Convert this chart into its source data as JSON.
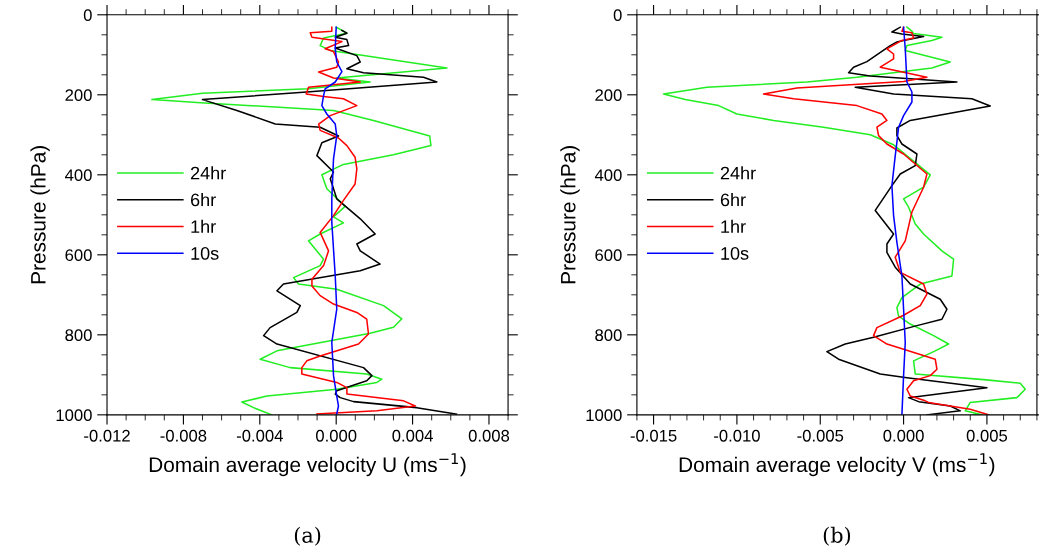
{
  "chart_data": [
    {
      "type": "line",
      "xlabel": "Domain average velocity U (ms$^{−1}$)",
      "ylabel": "Pressure (hPa)",
      "annotations": [
        "(a)"
      ],
      "xlim": [
        -0.012,
        0.009
      ],
      "xticks": [
        {
          "value": -0.012,
          "label": "-0.012"
        },
        {
          "value": -0.008,
          "label": "-0.008"
        },
        {
          "value": -0.004,
          "label": "-0.004"
        },
        {
          "value": 0,
          "label": "0.000"
        },
        {
          "value": 0.004,
          "label": "0.004"
        },
        {
          "value": 0.008,
          "label": "0.008"
        }
      ],
      "ylim": [
        1000,
        0
      ],
      "yticks": [
        0,
        200,
        400,
        600,
        800,
        1000
      ],
      "grid": false,
      "legend": "left",
      "marker": "none",
      "line_style": "solid",
      "series": [
        {
          "name": "24hr",
          "color": "#22ee22",
          "x": [
            0,
            0.00056,
            -0.00066,
            -0.00084,
            -0.00031,
            0.0058,
            3e-05,
            0.00178,
            -0.00145,
            -0.007,
            -0.00965,
            -0.0071,
            -0.00014,
            0.00195,
            0.0049,
            0.00496,
            0.003,
            0.00038,
            -0.00075,
            -0.00049,
            0.00047,
            -0.00014,
            0.00038,
            -0.00084,
            -0.00145,
            -0.00066,
            -0.00084,
            -0.00223,
            -0.00197,
            3e-05,
            0.00248,
            0.00344,
            0.003,
            0.00178,
            -0.0031,
            -0.00398,
            -0.00241,
            0.0016,
            0.00239,
            0.00213,
            3e-05,
            -0.00363,
            -0.00494,
            -0.00433,
            -0.00337
          ],
          "values": [
            31,
            46,
            58,
            77,
            89,
            133,
            158,
            168,
            185,
            196,
            212,
            220,
            239,
            264,
            303,
            327,
            350,
            374,
            400,
            435,
            479,
            505,
            520,
            548,
            565,
            611,
            627,
            657,
            673,
            686,
            727,
            760,
            781,
            796,
            840,
            861,
            882,
            898,
            911,
            919,
            936,
            953,
            968,
            982,
            1000
          ]
        },
        {
          "name": "6hr",
          "color": "#000000",
          "x": [
            0.0003,
            0.00056,
            -5e-05,
            0.00056,
            0.00065,
            -5e-05,
            0.00108,
            0.00126,
            0.00056,
            0.00143,
            0.00457,
            0.00527,
            -0.00154,
            -0.007,
            -0.0052,
            -0.00319,
            -0.00084,
            0.00012,
            -0.00075,
            -0.00101,
            -0.00014,
            -0.00031,
            3e-05,
            0.00126,
            0.00204,
            0.00108,
            0.00126,
            0.0023,
            0.00126,
            -0.00276,
            -0.0031,
            -0.00188,
            -0.00206,
            -0.00346,
            -0.0038,
            -0.0031,
            0.00143,
            0.00187,
            0.0016,
            3e-05,
            -5e-05,
            0.00021,
            0.00091,
            0.00422,
            0.0063
          ],
          "values": [
            39,
            46,
            56,
            62,
            77,
            83,
            102,
            118,
            135,
            145,
            156,
            168,
            193,
            212,
            239,
            273,
            281,
            303,
            320,
            352,
            393,
            410,
            460,
            510,
            548,
            573,
            590,
            623,
            640,
            673,
            690,
            727,
            744,
            782,
            802,
            823,
            882,
            902,
            915,
            940,
            948,
            957,
            967,
            982,
            998
          ]
        },
        {
          "name": "1hr",
          "color": "#ff0000",
          "x": [
            -0.00023,
            -0.00023,
            -0.00136,
            -0.00127,
            0.0003,
            -0.00058,
            -0.00014,
            0.00012,
            3e-05,
            -0.00092,
            -0.00014,
            0.00126,
            -0.00145,
            -0.00157,
            -0.00066,
            0.00038,
            0.00108,
            -0.00031,
            -0.00092,
            -0.00084,
            0.00012,
            0.00056,
            0.00099,
            0.00108,
            0.00099,
            0.00038,
            -0.00014,
            -0.00084,
            -0.0004,
            -0.00066,
            -0.00127,
            -0.00127,
            -0.00084,
            -0.00014,
            0.00108,
            0.0016,
            0.00169,
            0.00117,
            -0.00084,
            -0.00154,
            -0.0018,
            -0.0018,
            3e-05,
            0.00056,
            0.00056,
            0.00353,
            0.00414,
            0.00213,
            -0.00101
          ],
          "values": [
            31,
            41,
            45,
            56,
            67,
            85,
            92,
            118,
            131,
            143,
            158,
            168,
            181,
            198,
            204,
            210,
            227,
            252,
            273,
            289,
            308,
            327,
            356,
            385,
            423,
            464,
            502,
            544,
            590,
            627,
            661,
            678,
            702,
            723,
            744,
            761,
            798,
            823,
            853,
            865,
            882,
            898,
            919,
            932,
            948,
            965,
            978,
            990,
            998
          ]
        },
        {
          "name": "10s",
          "color": "#0000ff",
          "x": [
            0,
            -5e-05,
            3e-05,
            0.0003,
            -5e-05,
            -0.00058,
            -0.00066,
            -0.00075,
            -0.00049,
            -5e-05,
            3e-05,
            -0.00014,
            -0.00023,
            -0.00023,
            -5e-05,
            3e-05,
            -0.00023,
            -0.00014,
            3e-05,
            0.00012,
            3e-05
          ],
          "values": [
            31,
            85,
            118,
            142,
            168,
            185,
            202,
            227,
            248,
            273,
            302,
            360,
            460,
            519,
            653,
            736,
            819,
            902,
            953,
            978,
            998
          ]
        }
      ]
    },
    {
      "type": "line",
      "xlabel": "Domain average velocity V (ms$^{−1}$)",
      "ylabel": "Pressure (hPa)",
      "annotations": [
        "(b)"
      ],
      "xlim": [
        -0.016,
        0.008
      ],
      "xticks": [
        {
          "value": -0.015,
          "label": "-0.015"
        },
        {
          "value": -0.01,
          "label": "-0.010"
        },
        {
          "value": -0.005,
          "label": "-0.005"
        },
        {
          "value": 0,
          "label": "0.000"
        },
        {
          "value": 0.005,
          "label": "0.005"
        }
      ],
      "ylim": [
        1000,
        0
      ],
      "yticks": [
        0,
        200,
        400,
        600,
        800,
        1000
      ],
      "grid": false,
      "legend": "left",
      "marker": "none",
      "line_style": "solid",
      "series": [
        {
          "name": "24hr",
          "color": "#22ee22",
          "x": [
            0.0002,
            0.0005,
            0.0006,
            0.0023,
            0.0017,
            0.0002,
            0.0001,
            0.0028,
            0.0017,
            -0.0028,
            -0.0058,
            -0.0118,
            -0.0144,
            -0.0131,
            -0.0111,
            -0.01,
            -0.0078,
            -0.0048,
            -0.002,
            -0.0006,
            0.0016,
            0.0012,
            0,
            0.0003,
            0.0007,
            0.0012,
            0.0023,
            0.003,
            0.0029,
            0.001,
            -0.0001,
            -0.0004,
            -0.0003,
            0.0004,
            0.0018,
            0.0027,
            0.0019,
            0.0006,
            0.0007,
            0.0048,
            0.007,
            0.0073,
            0.0068,
            0.004,
            0.0037,
            0.0047,
            0.0042
          ],
          "values": [
            31,
            41,
            47,
            56,
            64,
            77,
            89,
            118,
            133,
            156,
            168,
            181,
            198,
            212,
            227,
            248,
            264,
            281,
            300,
            325,
            400,
            431,
            460,
            481,
            523,
            548,
            590,
            611,
            653,
            673,
            707,
            732,
            753,
            773,
            802,
            823,
            840,
            865,
            898,
            912,
            921,
            936,
            957,
            969,
            990,
            1000,
            1000
          ]
        },
        {
          "name": "6hr",
          "color": "#000000",
          "x": [
            -0.0002,
            -0.0007,
            -0.0001,
            0.0012,
            0,
            -0.0004,
            -0.0008,
            -0.0022,
            -0.003,
            -0.0033,
            -0.002,
            0.0032,
            -0.0029,
            -0.0006,
            0.0041,
            0.0052,
            0.0004,
            -0.0004,
            -0.0004,
            -0.0001,
            0.0008,
            0.0007,
            -0.0002,
            -0.0007,
            -0.0017,
            -0.0006,
            -0.001,
            -0.001,
            -0.0005,
            0.0004,
            0.0022,
            0.0026,
            0.0023,
            0.0008,
            -0.0018,
            -0.0035,
            -0.0046,
            -0.0039,
            -0.0014,
            0.0002,
            0.005,
            0.0003,
            0.0009,
            0.0028,
            0.0034,
            0.0014
          ],
          "values": [
            31,
            43,
            48,
            54,
            64,
            68,
            77,
            117,
            131,
            145,
            153,
            168,
            181,
            198,
            210,
            228,
            264,
            283,
            302,
            323,
            348,
            377,
            398,
            427,
            489,
            548,
            573,
            594,
            631,
            673,
            711,
            736,
            761,
            777,
            806,
            823,
            842,
            861,
            898,
            907,
            932,
            957,
            967,
            978,
            990,
            1000
          ]
        },
        {
          "name": "1hr",
          "color": "#ff0000",
          "x": [
            0,
            -0.0001,
            0.0005,
            0.0006,
            -0.0001,
            -0.001,
            -0.0006,
            -0.0006,
            -0.0014,
            0.0014,
            0,
            -0.0064,
            -0.0084,
            -0.0066,
            -0.0028,
            -0.0013,
            -0.001,
            -0.0016,
            -0.0015,
            -0.001,
            0,
            0.0014,
            0.0012,
            0.0005,
            0.0001,
            -0.0005,
            -0.0002,
            0.0012,
            0.0014,
            0.001,
            0,
            -0.0016,
            -0.0018,
            -0.001,
            0,
            0.0019,
            0.002,
            0.0016,
            0.0006,
            0.0002,
            0.0004,
            0.0013,
            0.0015,
            0.004,
            0.0051
          ],
          "values": [
            31,
            41,
            45,
            58,
            64,
            85,
            98,
            110,
            131,
            156,
            167,
            183,
            198,
            210,
            227,
            248,
            264,
            281,
            302,
            323,
            348,
            398,
            431,
            493,
            565,
            606,
            644,
            673,
            698,
            727,
            751,
            782,
            802,
            823,
            836,
            861,
            886,
            902,
            915,
            936,
            953,
            965,
            969,
            986,
            1000
          ]
        },
        {
          "name": "10s",
          "color": "#0000ff",
          "x": [
            0,
            0.0001,
            0.0002,
            0.0005,
            0.0005,
            0,
            -0.0003,
            -0.0004,
            -0.0005,
            -0.0007,
            -0.0006,
            -0.0004,
            -0.0001,
            0,
            0.0001,
            0,
            -0.0001
          ],
          "values": [
            31,
            85,
            168,
            193,
            218,
            252,
            281,
            318,
            352,
            427,
            502,
            569,
            653,
            736,
            819,
            902,
            1000
          ]
        }
      ]
    }
  ]
}
